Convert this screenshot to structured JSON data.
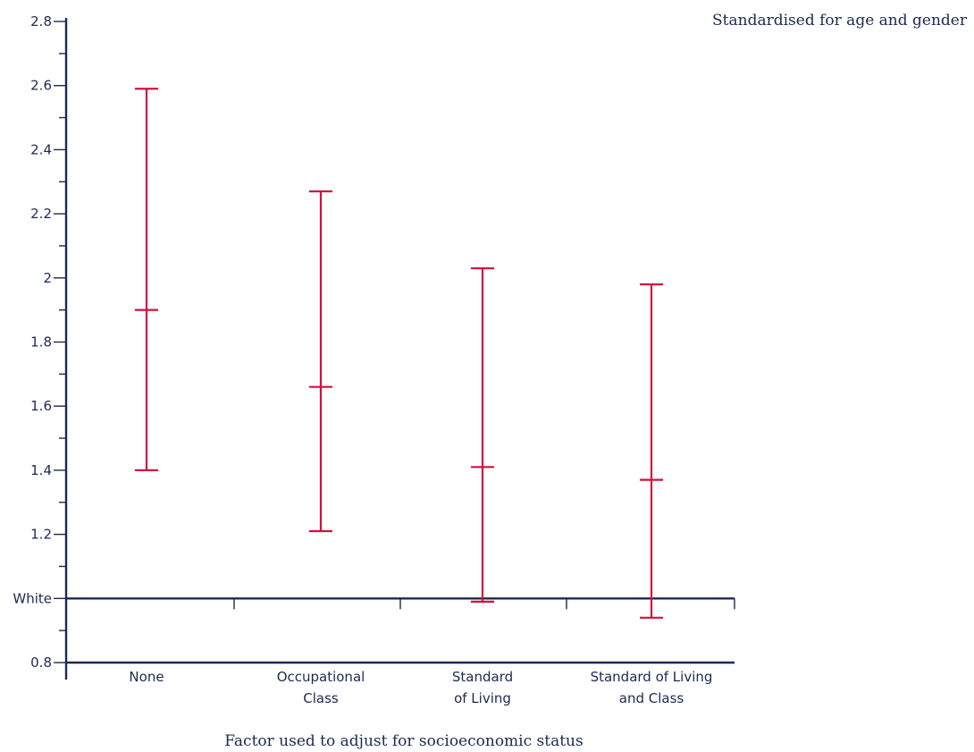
{
  "chart_data": {
    "type": "errorbar",
    "subtitle": "Standardised for age and gender",
    "xlabel": "Factor used to adjust for socioeconomic status",
    "ylabel": "",
    "ylim": [
      0.8,
      2.8
    ],
    "yticks": [
      {
        "value": 0.8,
        "label": "0.8"
      },
      {
        "value": 1.0,
        "label": "White"
      },
      {
        "value": 1.2,
        "label": "1.2"
      },
      {
        "value": 1.4,
        "label": "1.4"
      },
      {
        "value": 1.6,
        "label": "1.6"
      },
      {
        "value": 1.8,
        "label": "1.8"
      },
      {
        "value": 2.0,
        "label": "2"
      },
      {
        "value": 2.2,
        "label": "2.2"
      },
      {
        "value": 2.4,
        "label": "2.4"
      },
      {
        "value": 2.6,
        "label": "2.6"
      },
      {
        "value": 2.8,
        "label": "2.8"
      }
    ],
    "reference_line": {
      "value": 1.0,
      "label": "White"
    },
    "categories": [
      [
        "None"
      ],
      [
        "Occupational",
        "Class"
      ],
      [
        "Standard",
        "of Living"
      ],
      [
        "Standard of Living",
        "and Class"
      ]
    ],
    "points": [
      {
        "estimate": 1.9,
        "lower": 1.4,
        "upper": 2.59
      },
      {
        "estimate": 1.66,
        "lower": 1.21,
        "upper": 2.27
      },
      {
        "estimate": 1.41,
        "lower": 0.99,
        "upper": 2.03
      },
      {
        "estimate": 1.37,
        "lower": 0.94,
        "upper": 1.98
      }
    ],
    "colors": {
      "axis": "#1c2a52",
      "bars": "#d4113a"
    },
    "grid": false
  }
}
